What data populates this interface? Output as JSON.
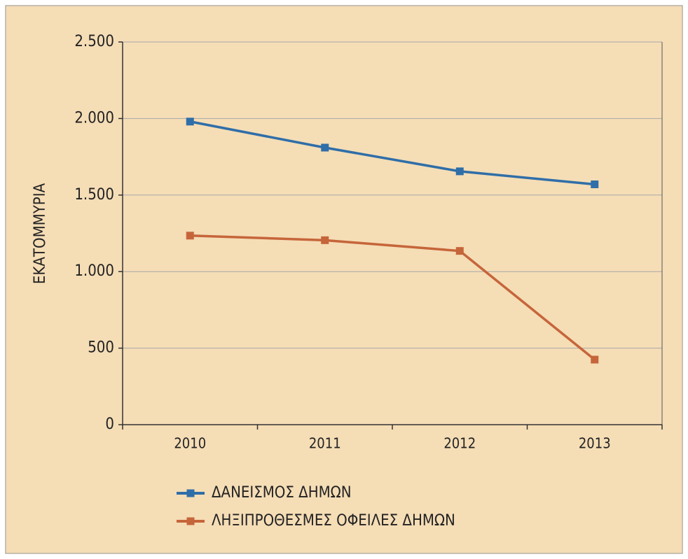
{
  "chart_data": {
    "type": "line",
    "ylabel": "ΕΚΑΤΟΜΜΥΡΙΑ",
    "categories": [
      "2010",
      "2011",
      "2012",
      "2013"
    ],
    "series": [
      {
        "name": "ΔΑΝΕΙΣΜΟΣ ΔΗΜΩΝ",
        "color": "#2f6ea8",
        "values": [
          1980,
          1810,
          1655,
          1570
        ]
      },
      {
        "name": "ΛΗΞΙΠΡΟΘΕΣΜΕΣ ΟΦΕΙΛΕΣ ΔΗΜΩΝ",
        "color": "#c6653a",
        "values": [
          1235,
          1205,
          1135,
          425
        ]
      }
    ],
    "ylim": [
      0,
      2500
    ],
    "yticks": [
      0,
      500,
      {
        "value": 1000,
        "label": "1.000"
      },
      {
        "value": 1500,
        "label": "1.500"
      },
      {
        "value": 2000,
        "label": "2.000"
      },
      {
        "value": 2500,
        "label": "2.500"
      }
    ],
    "grid": true
  }
}
